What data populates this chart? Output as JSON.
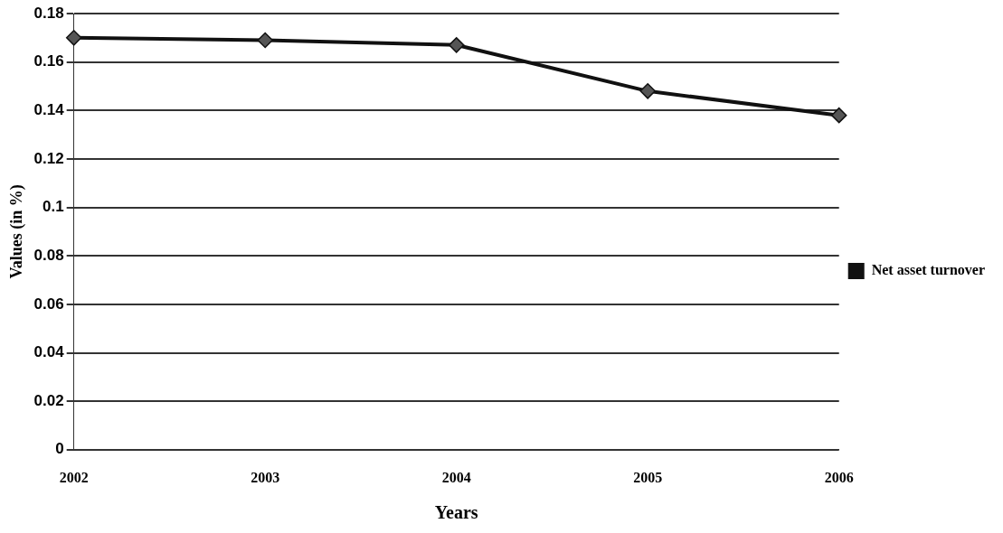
{
  "chart_data": {
    "type": "line",
    "xlabel": "Years",
    "ylabel": "Values (in %)",
    "categories": [
      "2002",
      "2003",
      "2004",
      "2005",
      "2006"
    ],
    "series": [
      {
        "name": "Net asset turnover",
        "color": "#111111",
        "values": [
          0.17,
          0.169,
          0.167,
          0.148,
          0.138
        ]
      }
    ],
    "ylim": [
      0,
      0.18
    ],
    "yticks": [
      0,
      {
        "value": 0.02,
        "label": "0.02"
      },
      {
        "value": 0.04,
        "label": "0.04"
      },
      {
        "value": 0.06,
        "label": "0.06"
      },
      {
        "value": 0.08,
        "label": "0.08"
      },
      {
        "value": 0.1,
        "label": "0.1"
      },
      {
        "value": 0.12,
        "label": "0.12"
      },
      {
        "value": 0.14,
        "label": "0.14"
      },
      {
        "value": 0.16,
        "label": "0.16"
      },
      {
        "value": 0.18,
        "label": "0.18"
      }
    ],
    "grid": "y",
    "legend": "right",
    "marker": "diamond",
    "line_style": "solid"
  }
}
